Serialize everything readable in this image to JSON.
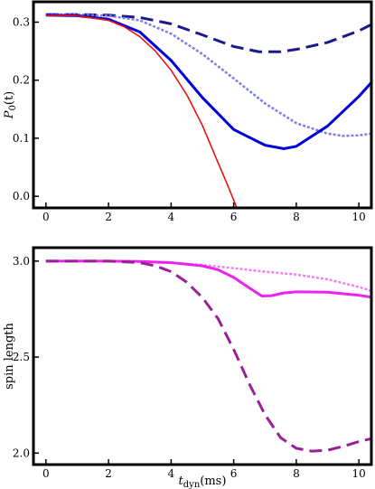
{
  "chart_data": [
    {
      "type": "line",
      "title": "",
      "xlabel": "",
      "ylabel": "P0(t)",
      "ylabel_main": "P",
      "ylabel_sub": "0",
      "ylabel_tail": "(t)",
      "xlim": [
        -0.4,
        10.4
      ],
      "ylim": [
        -0.02,
        0.335
      ],
      "xticks": [
        0,
        2,
        4,
        6,
        8,
        10
      ],
      "yticks": [
        0.0,
        0.1,
        0.2,
        0.3
      ],
      "xtick_labels": [
        "0",
        "2",
        "4",
        "6",
        "8",
        "10"
      ],
      "ytick_labels": [
        "0.0",
        "0.1",
        "0.2",
        "0.3"
      ],
      "grid": false,
      "series": [
        {
          "color": "#1a1a8c",
          "style": "dashed",
          "width": 3,
          "x": [
            0,
            1,
            2,
            3,
            4,
            5,
            6,
            6.8,
            7.5,
            8,
            9,
            10,
            10.4
          ],
          "y": [
            0.313,
            0.313,
            0.312,
            0.308,
            0.297,
            0.278,
            0.258,
            0.249,
            0.249,
            0.253,
            0.265,
            0.285,
            0.296
          ]
        },
        {
          "color": "#7d7de6",
          "style": "dotted",
          "width": 2.5,
          "x": [
            0,
            1,
            2,
            3,
            4,
            5,
            6,
            7,
            8,
            9,
            9.5,
            10,
            10.4
          ],
          "y": [
            0.313,
            0.313,
            0.311,
            0.303,
            0.28,
            0.245,
            0.203,
            0.16,
            0.126,
            0.108,
            0.104,
            0.105,
            0.108
          ]
        },
        {
          "color": "#0000dd",
          "style": "solid",
          "width": 3,
          "x": [
            0,
            1,
            2,
            3,
            4,
            5,
            6,
            7,
            7.6,
            8,
            9,
            10,
            10.4
          ],
          "y": [
            0.312,
            0.311,
            0.305,
            0.283,
            0.234,
            0.17,
            0.115,
            0.088,
            0.082,
            0.086,
            0.121,
            0.172,
            0.196
          ]
        },
        {
          "color": "#ee1111",
          "style": "solid",
          "width": 1.6,
          "x": [
            0,
            1,
            2,
            2.5,
            3,
            3.5,
            4,
            4.5,
            5,
            5.5,
            5.8,
            6.1
          ],
          "y": [
            0.312,
            0.311,
            0.303,
            0.292,
            0.275,
            0.25,
            0.217,
            0.175,
            0.122,
            0.058,
            0.02,
            -0.02
          ]
        }
      ]
    },
    {
      "type": "line",
      "title": "",
      "xlabel": "tdyn(ms)",
      "xlabel_main": "t",
      "xlabel_sub": "dyn",
      "xlabel_tail": "(ms)",
      "ylabel": "spin length",
      "xlim": [
        -0.4,
        10.4
      ],
      "ylim": [
        1.94,
        3.07
      ],
      "xticks": [
        0,
        2,
        4,
        6,
        8,
        10
      ],
      "yticks": [
        2.0,
        2.5,
        3.0
      ],
      "xtick_labels": [
        "0",
        "2",
        "4",
        "6",
        "8",
        "10"
      ],
      "ytick_labels": [
        "2.0",
        "2.5",
        "3.0"
      ],
      "grid": false,
      "series": [
        {
          "color": "#f080f0",
          "style": "dotted",
          "width": 2.5,
          "x": [
            0,
            2,
            3,
            4,
            5,
            6,
            7,
            8,
            9,
            10,
            10.4
          ],
          "y": [
            3.0,
            3.0,
            2.998,
            2.992,
            2.98,
            2.963,
            2.945,
            2.93,
            2.905,
            2.865,
            2.845
          ]
        },
        {
          "color": "#ee22ee",
          "style": "solid",
          "width": 3,
          "x": [
            0,
            2,
            3,
            4,
            5,
            5.5,
            6,
            6.5,
            6.9,
            7.2,
            7.6,
            8,
            9,
            10,
            10.4
          ],
          "y": [
            3.0,
            3.0,
            2.998,
            2.992,
            2.975,
            2.955,
            2.915,
            2.86,
            2.818,
            2.82,
            2.834,
            2.84,
            2.838,
            2.822,
            2.812
          ]
        },
        {
          "color": "#9a209a",
          "style": "dashed",
          "width": 3,
          "x": [
            0,
            1,
            2,
            3,
            3.5,
            4,
            4.5,
            5,
            5.5,
            6,
            6.5,
            7,
            7.5,
            8,
            8.5,
            9,
            9.5,
            10,
            10.4
          ],
          "y": [
            3.0,
            3.0,
            3.0,
            2.992,
            2.975,
            2.945,
            2.89,
            2.81,
            2.7,
            2.54,
            2.36,
            2.2,
            2.08,
            2.025,
            2.01,
            2.015,
            2.035,
            2.06,
            2.075
          ]
        }
      ]
    }
  ]
}
